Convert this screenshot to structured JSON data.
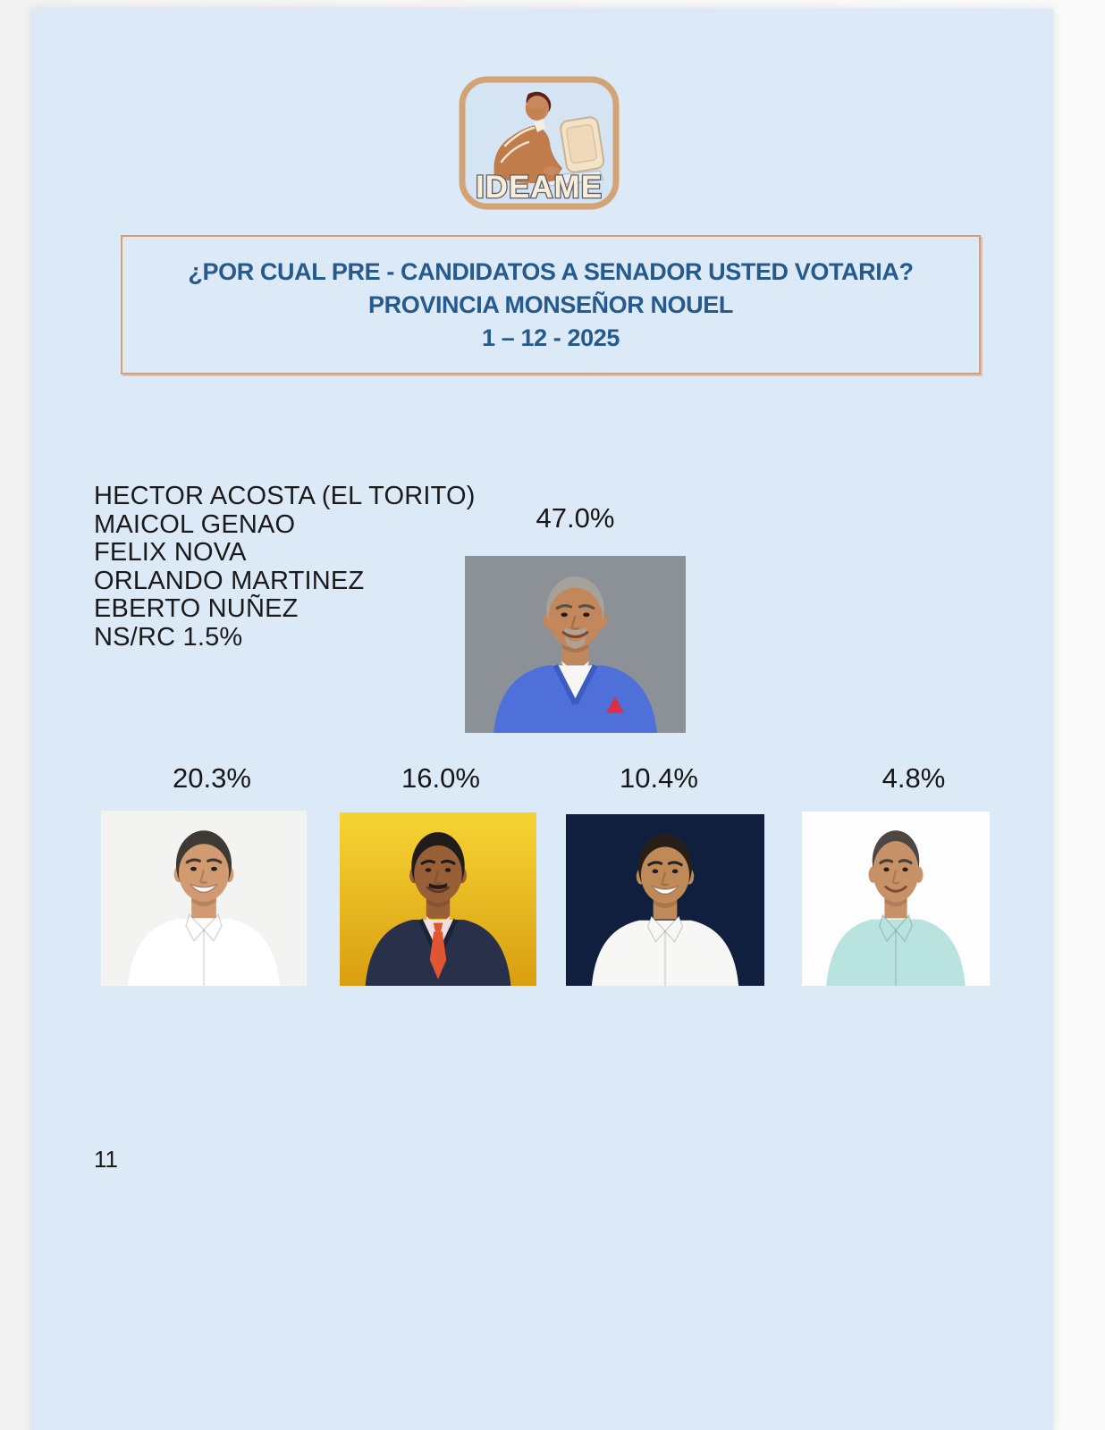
{
  "page": {
    "bg_color": "#dce9f6",
    "page_number": "11"
  },
  "logo": {
    "label": "IDEAME",
    "border_color": "#d2a377",
    "icon": "person-at-computer-clipart",
    "text_fill": "#f7edd9",
    "text_outline": "#5d5f68"
  },
  "title_box": {
    "border_color": "#dd9b72",
    "text_color": "#265a8c",
    "line1": "¿POR CUAL PRE - CANDIDATOS A SENADOR USTED VOTARIA?",
    "line2": "PROVINCIA MONSEÑOR NOUEL",
    "line3": "1 – 12 - 2025"
  },
  "candidate_list": {
    "items": [
      "HECTOR ACOSTA (EL TORITO)",
      "MAICOL GENAO",
      "FELIX NOVA",
      "ORLANDO MARTINEZ",
      "EBERTO NUÑEZ",
      "NS/RC 1.5%"
    ]
  },
  "leader": {
    "percent": "47.0%",
    "photo": {
      "bg": "#8b9196",
      "jacket": "#4e70d8",
      "lapel": "#3c5cc2",
      "shirt": "#f7f6f3",
      "skin": "#c2885c",
      "hair": "#a5a29c",
      "brow": "#57524c",
      "facial_hair": "#aca69e",
      "pocket_square": "#d82f4a"
    }
  },
  "others": [
    {
      "percent": "20.3%",
      "photo": {
        "bg": "#f3f3f1",
        "shirt": "#ffffff",
        "skin": "#d19a70",
        "hair": "#3f3933",
        "brow": "#3f3933",
        "smile": "big",
        "full_hair": true
      }
    },
    {
      "percent": "16.0%",
      "photo": {
        "bg": "#f6d434",
        "bg2": "#d99f10",
        "jacket": "#29304a",
        "lapel": "#1d2336",
        "shirt": "#f2dde0",
        "tie": "#e25532",
        "skin": "#996038",
        "hair": "#201c1a",
        "brow": "#201c1a",
        "mustache": "#241c18",
        "full_hair": true
      }
    },
    {
      "percent": "10.4%",
      "photo": {
        "bg": "#101f3e",
        "shirt": "#f7f7f5",
        "skin": "#bf8a58",
        "hair": "#262019",
        "brow": "#262019",
        "smile": "big",
        "full_hair": true
      }
    },
    {
      "percent": "4.8%",
      "photo": {
        "bg": "#fdfdfd",
        "shirt": "#b9e3df",
        "skin": "#c89268",
        "hair": "#4d4643",
        "brow": "#44403c",
        "receding": true
      }
    }
  ]
}
